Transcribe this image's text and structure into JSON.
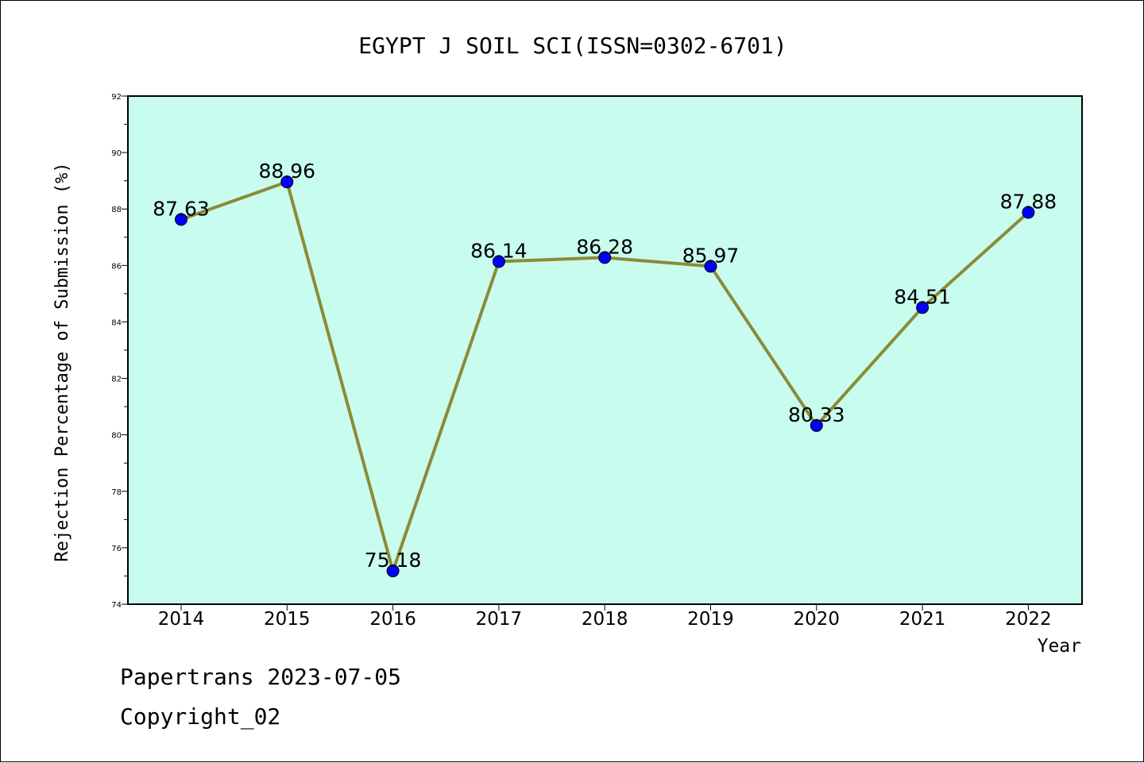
{
  "chart_data": {
    "type": "line",
    "title": "EGYPT J SOIL SCI(ISSN=0302-6701)",
    "xlabel": "Year",
    "ylabel": "Rejection Percentage of Submission (%)",
    "categories": [
      "2014",
      "2015",
      "2016",
      "2017",
      "2018",
      "2019",
      "2020",
      "2021",
      "2022"
    ],
    "values": [
      87.63,
      88.96,
      75.18,
      86.14,
      86.28,
      85.97,
      80.33,
      84.51,
      87.88
    ],
    "data_labels": [
      "87.63",
      "88.96",
      "75.18",
      "86.14",
      "86.28",
      "85.97",
      "80.33",
      "84.51",
      "87.88"
    ],
    "ylim": [
      74,
      92
    ],
    "yticks": [
      "74",
      "76",
      "78",
      "80",
      "82",
      "84",
      "86",
      "88",
      "90",
      "92"
    ],
    "grid": false,
    "colors": {
      "plot_background": "#c8fcee",
      "line": "#8b8b38",
      "marker": "#0000ff"
    }
  },
  "footer": {
    "line1": "Papertrans 2023-07-05",
    "line2": "Copyright_02"
  }
}
